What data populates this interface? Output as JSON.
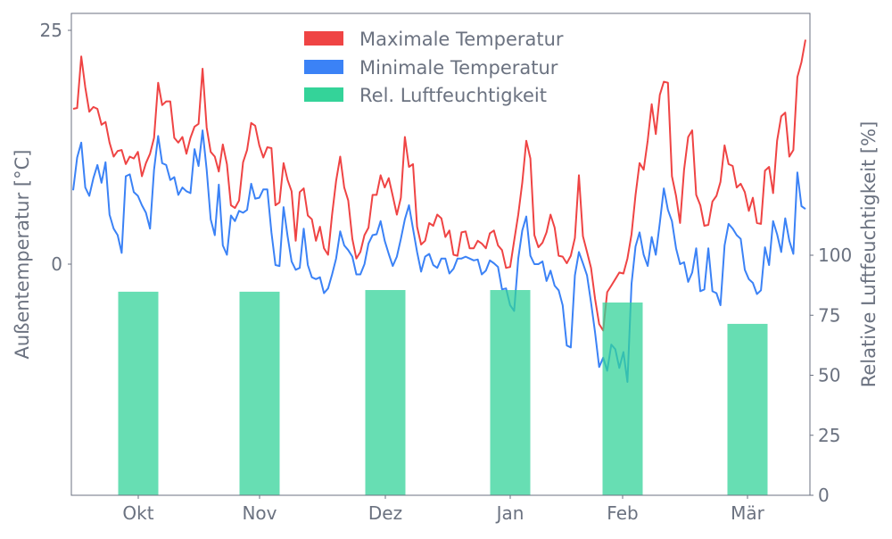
{
  "chart_data": [
    {
      "type": "line",
      "title": "",
      "xlabel": "",
      "ylabel": "Außentemperatur [°C]",
      "y_ticks": [
        0,
        25
      ],
      "ylim": [
        -24.7,
        26.8
      ],
      "x_tick_labels": [
        "Okt",
        "Nov",
        "Dez",
        "Jan",
        "Feb",
        "Mär"
      ],
      "x_resolution": "daily",
      "grid": false,
      "legend": "top-center",
      "series": [
        {
          "name": "Maximale Temperatur",
          "color": "#ef4444",
          "values": [
            16.6,
            16.7,
            22.2,
            18.9,
            16.3,
            16.8,
            16.6,
            14.9,
            15.2,
            13.0,
            11.5,
            12.1,
            12.2,
            10.7,
            11.5,
            11.3,
            12.0,
            9.4,
            10.8,
            11.8,
            13.5,
            19.4,
            17.0,
            17.4,
            17.4,
            13.5,
            13.0,
            13.6,
            11.8,
            13.5,
            14.7,
            15.0,
            20.9,
            14.6,
            12.0,
            11.5,
            9.9,
            12.8,
            10.7,
            6.3,
            6.0,
            6.8,
            10.9,
            12.2,
            15.1,
            14.8,
            12.7,
            11.4,
            12.5,
            12.4,
            6.3,
            6.6,
            10.8,
            9.0,
            7.8,
            2.5,
            7.7,
            8.1,
            5.2,
            4.8,
            2.5,
            4.0,
            1.7,
            1.0,
            5.3,
            8.9,
            11.5,
            8.2,
            6.8,
            2.7,
            0.6,
            1.3,
            3.1,
            3.9,
            7.4,
            7.4,
            9.5,
            8.2,
            9.2,
            7.3,
            5.3,
            7.1,
            13.6,
            10.4,
            10.7,
            4.0,
            2.1,
            2.5,
            4.4,
            4.1,
            5.3,
            4.9,
            2.9,
            3.6,
            1.0,
            0.9,
            3.4,
            3.5,
            1.7,
            1.7,
            2.5,
            2.2,
            1.7,
            3.3,
            3.6,
            2.0,
            1.5,
            -0.4,
            -0.3,
            2.5,
            5.3,
            8.7,
            13.2,
            11.3,
            3.1,
            1.8,
            2.3,
            3.4,
            5.3,
            3.9,
            0.9,
            0.8,
            0.1,
            0.9,
            2.8,
            9.5,
            3.0,
            1.3,
            -0.4,
            -3.7,
            -6.4,
            -7.1,
            -3.0,
            -2.3,
            -1.6,
            -0.9,
            -1.0,
            0.6,
            3.2,
            7.4,
            10.8,
            10.1,
            13.2,
            17.1,
            13.9,
            18.1,
            19.5,
            19.4,
            9.4,
            7.3,
            4.4,
            10.1,
            13.6,
            14.3,
            7.4,
            6.3,
            4.1,
            4.2,
            6.7,
            7.3,
            8.8,
            12.7,
            10.7,
            10.5,
            8.2,
            8.6,
            7.7,
            5.7,
            7.1,
            4.4,
            4.3,
            10.0,
            10.4,
            7.6,
            13.2,
            15.8,
            16.2,
            11.5,
            12.2,
            20.0,
            21.6,
            24.0
          ]
        },
        {
          "name": "Minimale Temperatur",
          "color": "#3b82f6",
          "values": [
            7.9,
            11.4,
            13.0,
            8.2,
            7.3,
            9.2,
            10.6,
            8.7,
            10.9,
            5.3,
            3.8,
            3.1,
            1.2,
            9.4,
            9.6,
            7.7,
            7.3,
            6.3,
            5.5,
            3.8,
            10.1,
            13.7,
            10.8,
            10.6,
            9.0,
            9.3,
            7.4,
            8.2,
            7.8,
            7.6,
            12.3,
            10.5,
            14.3,
            10.1,
            4.8,
            3.1,
            8.5,
            2.0,
            1.0,
            5.2,
            4.6,
            5.7,
            5.5,
            5.8,
            8.6,
            7.0,
            7.1,
            8.0,
            8.0,
            3.4,
            -0.1,
            -0.2,
            6.1,
            3.0,
            0.3,
            -0.6,
            -0.4,
            3.8,
            -0.1,
            -1.4,
            -1.6,
            -1.4,
            -3.1,
            -2.6,
            -1.1,
            0.6,
            3.5,
            2.0,
            1.5,
            0.8,
            -1.1,
            -1.1,
            0.0,
            2.2,
            3.1,
            3.2,
            4.6,
            2.5,
            1.1,
            -0.2,
            0.8,
            2.7,
            4.8,
            6.3,
            3.8,
            1.3,
            -0.8,
            0.8,
            1.1,
            -0.1,
            -0.4,
            0.6,
            0.6,
            -1.0,
            -0.5,
            0.6,
            0.6,
            0.8,
            0.6,
            0.4,
            0.5,
            -1.1,
            -0.7,
            0.4,
            0.1,
            -0.3,
            -2.7,
            -2.6,
            -4.4,
            -5.0,
            0.6,
            3.6,
            5.1,
            0.9,
            0.0,
            0.0,
            0.3,
            -1.8,
            -0.7,
            -2.3,
            -2.8,
            -4.4,
            -8.7,
            -8.9,
            -1.2,
            1.3,
            0.1,
            -1.2,
            -4.1,
            -7.3,
            -11.0,
            -10.0,
            -11.4,
            -8.6,
            -9.1,
            -11.1,
            -9.4,
            -12.6,
            -2.1,
            1.9,
            3.4,
            1.0,
            -0.2,
            2.9,
            1.0,
            4.4,
            8.1,
            5.8,
            4.6,
            1.7,
            0.0,
            0.2,
            -1.9,
            -0.9,
            1.7,
            -2.9,
            -2.7,
            1.7,
            -2.9,
            -3.1,
            -4.4,
            2.0,
            4.3,
            3.8,
            3.1,
            2.7,
            -0.6,
            -1.6,
            -2.0,
            -3.2,
            -2.8,
            1.8,
            -0.1,
            4.6,
            3.2,
            1.3,
            4.9,
            2.5,
            1.1,
            9.8,
            6.2,
            5.9
          ]
        }
      ]
    },
    {
      "type": "bar",
      "ylabel": "Relative Luftfeuchtigkeit [%]",
      "y_ticks": [
        0,
        25,
        50,
        75,
        100
      ],
      "ylim": [
        0,
        100
      ],
      "categories": [
        "Okt",
        "Nov",
        "Dez",
        "Jan",
        "Feb",
        "Mär"
      ],
      "series": [
        {
          "name": "Rel. Luftfeuchtigkeit",
          "color": "#34d399",
          "values": [
            84.8,
            84.8,
            85.5,
            85.5,
            80.3,
            71.4
          ]
        }
      ]
    }
  ],
  "legend": {
    "items": [
      {
        "label": "Maximale Temperatur",
        "color": "#ef4444"
      },
      {
        "label": "Minimale Temperatur",
        "color": "#3b82f6"
      },
      {
        "label": "Rel. Luftfeuchtigkeit",
        "color": "#34d399"
      }
    ]
  },
  "axes": {
    "left_label": "Außentemperatur [°C]",
    "left_ticks": [
      "0",
      "25"
    ],
    "right_label": "Relative Luftfeuchtigkeit [%]",
    "right_ticks": [
      "0",
      "25",
      "50",
      "75",
      "100"
    ],
    "x_ticks": [
      "Okt",
      "Nov",
      "Dez",
      "Jan",
      "Feb",
      "Mär"
    ]
  }
}
